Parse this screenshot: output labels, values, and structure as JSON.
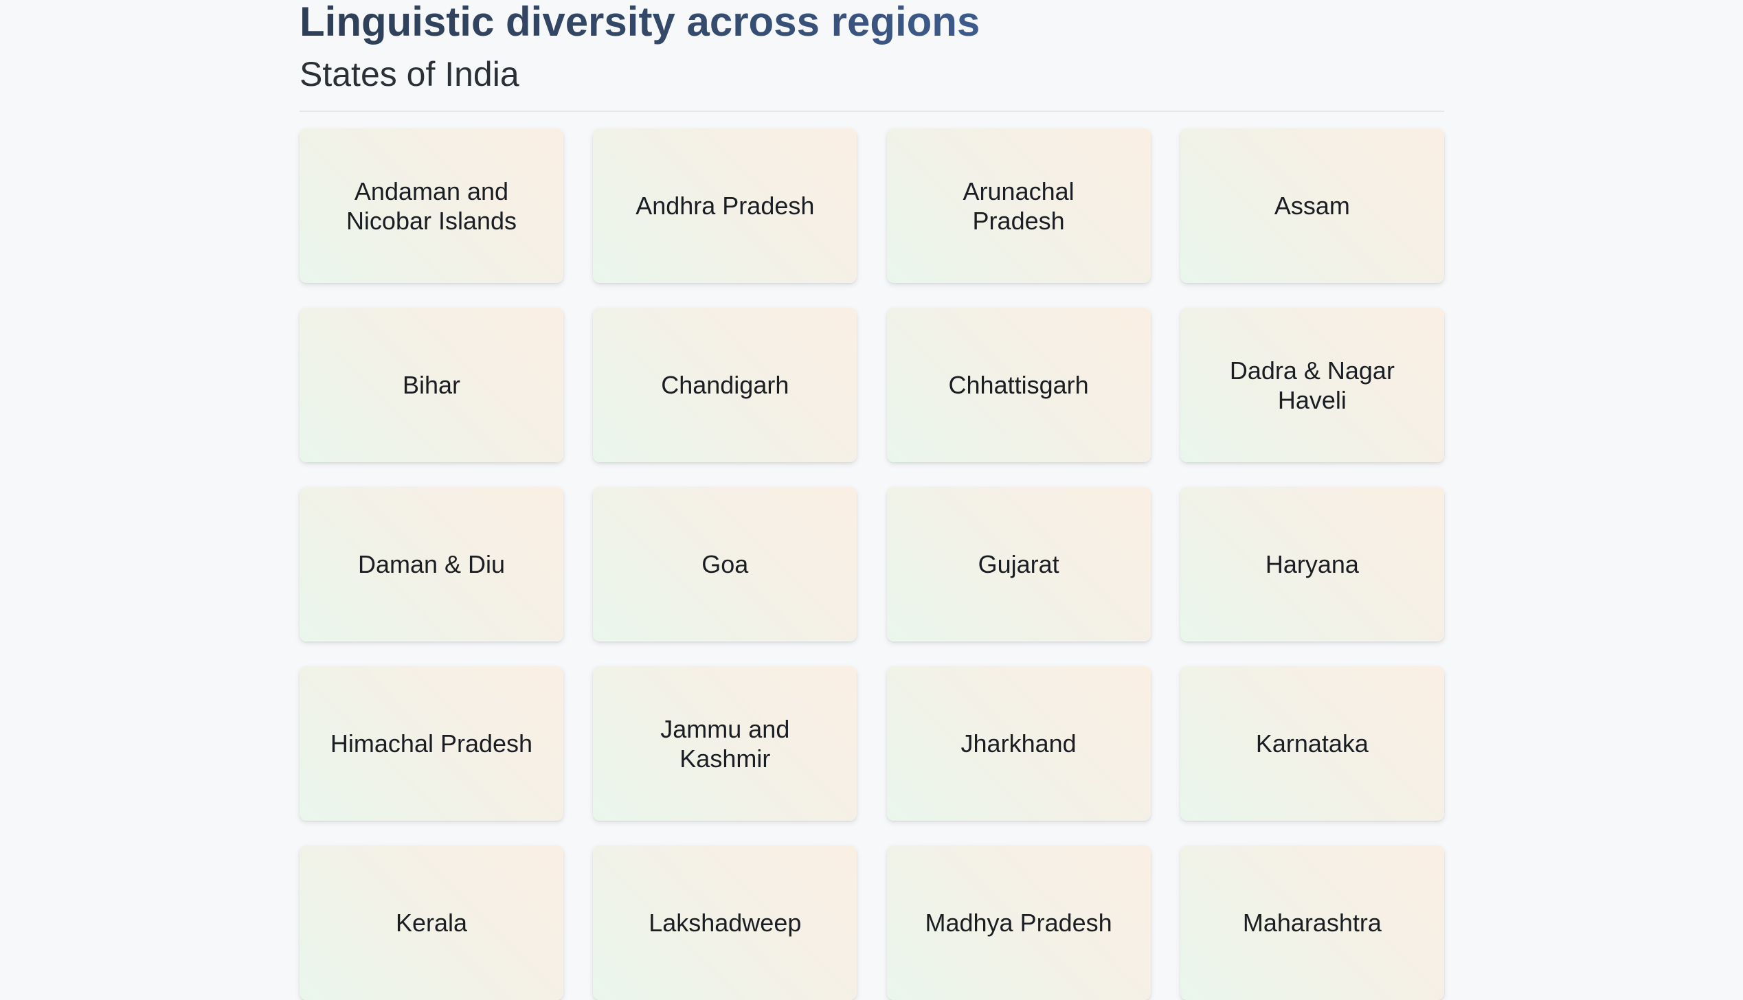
{
  "header": {
    "title": "Linguistic diversity across regions",
    "subtitle": "States of India"
  },
  "states": [
    {
      "label": "Andaman and Nicobar Islands"
    },
    {
      "label": "Andhra Pradesh"
    },
    {
      "label": "Arunachal Pradesh"
    },
    {
      "label": "Assam"
    },
    {
      "label": "Bihar"
    },
    {
      "label": "Chandigarh"
    },
    {
      "label": "Chhattisgarh"
    },
    {
      "label": "Dadra & Nagar Haveli"
    },
    {
      "label": "Daman & Diu"
    },
    {
      "label": "Goa"
    },
    {
      "label": "Gujarat"
    },
    {
      "label": "Haryana"
    },
    {
      "label": "Himachal Pradesh"
    },
    {
      "label": "Jammu and Kashmir"
    },
    {
      "label": "Jharkhand"
    },
    {
      "label": "Karnataka"
    },
    {
      "label": "Kerala"
    },
    {
      "label": "Lakshadweep"
    },
    {
      "label": "Madhya Pradesh"
    },
    {
      "label": "Maharashtra"
    }
  ],
  "colors": {
    "background": "#f7f8fa",
    "title": "#34496a",
    "card_gradient_start": "#eaf6ec",
    "card_gradient_end": "#fbefe4"
  }
}
